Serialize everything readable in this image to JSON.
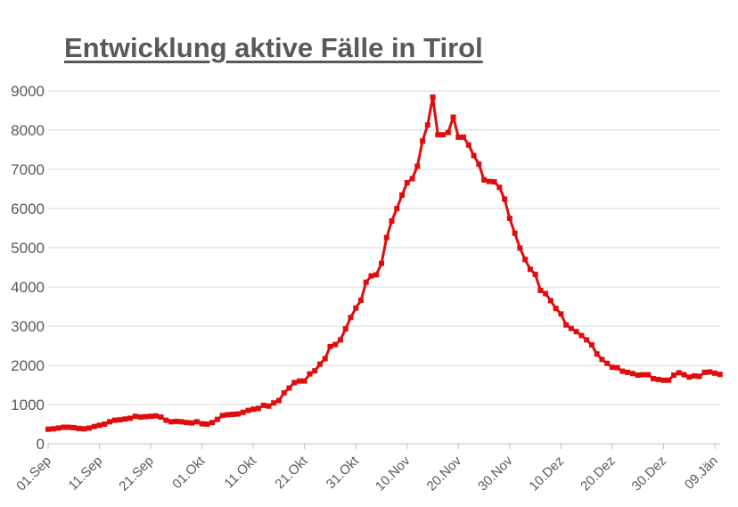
{
  "chart_data": {
    "type": "line",
    "title": "Entwicklung aktive Fälle in Tirol",
    "xlabel": "",
    "ylabel": "",
    "ylim": [
      0,
      9000
    ],
    "yticks": [
      0,
      1000,
      2000,
      3000,
      4000,
      5000,
      6000,
      7000,
      8000,
      9000
    ],
    "xticks": [
      "01.Sep",
      "11.Sep",
      "21.Sep",
      "01.Okt",
      "11.Okt",
      "21.Okt",
      "31.Okt",
      "10.Nov",
      "20.Nov",
      "30.Nov",
      "10.Dez",
      "20.Dez",
      "30.Dez",
      "09.Jän"
    ],
    "grid": "horizontal",
    "legend": "none",
    "color": "#e00d0d",
    "marker": "square",
    "x": [
      "01.Sep",
      "02.Sep",
      "03.Sep",
      "04.Sep",
      "05.Sep",
      "06.Sep",
      "07.Sep",
      "08.Sep",
      "09.Sep",
      "10.Sep",
      "11.Sep",
      "12.Sep",
      "13.Sep",
      "14.Sep",
      "15.Sep",
      "16.Sep",
      "17.Sep",
      "18.Sep",
      "19.Sep",
      "20.Sep",
      "21.Sep",
      "22.Sep",
      "23.Sep",
      "24.Sep",
      "25.Sep",
      "26.Sep",
      "27.Sep",
      "28.Sep",
      "29.Sep",
      "30.Sep",
      "01.Okt",
      "02.Okt",
      "03.Okt",
      "04.Okt",
      "05.Okt",
      "06.Okt",
      "07.Okt",
      "08.Okt",
      "09.Okt",
      "10.Okt",
      "11.Okt",
      "12.Okt",
      "13.Okt",
      "14.Okt",
      "15.Okt",
      "16.Okt",
      "17.Okt",
      "18.Okt",
      "19.Okt",
      "20.Okt",
      "21.Okt",
      "22.Okt",
      "23.Okt",
      "24.Okt",
      "25.Okt",
      "26.Okt",
      "27.Okt",
      "28.Okt",
      "29.Okt",
      "30.Okt",
      "31.Okt",
      "01.Nov",
      "02.Nov",
      "03.Nov",
      "04.Nov",
      "05.Nov",
      "06.Nov",
      "07.Nov",
      "08.Nov",
      "09.Nov",
      "10.Nov",
      "11.Nov",
      "12.Nov",
      "13.Nov",
      "14.Nov",
      "15.Nov",
      "16.Nov",
      "17.Nov",
      "18.Nov",
      "19.Nov",
      "20.Nov",
      "21.Nov",
      "22.Nov",
      "23.Nov",
      "24.Nov",
      "25.Nov",
      "26.Nov",
      "27.Nov",
      "28.Nov",
      "29.Nov",
      "30.Nov",
      "01.Dez",
      "02.Dez",
      "03.Dez",
      "04.Dez",
      "05.Dez",
      "06.Dez",
      "07.Dez",
      "08.Dez",
      "09.Dez",
      "10.Dez",
      "11.Dez",
      "12.Dez",
      "13.Dez",
      "14.Dez",
      "15.Dez",
      "16.Dez",
      "17.Dez",
      "18.Dez",
      "19.Dez",
      "20.Dez",
      "21.Dez",
      "22.Dez",
      "23.Dez",
      "24.Dez",
      "25.Dez",
      "26.Dez",
      "27.Dez",
      "28.Dez",
      "29.Dez",
      "30.Dez",
      "31.Dez",
      "01.Jän",
      "02.Jän",
      "03.Jän",
      "04.Jän",
      "05.Jän",
      "06.Jän",
      "07.Jän",
      "08.Jän",
      "09.Jän",
      "10.Jän"
    ],
    "values": [
      370,
      380,
      400,
      420,
      420,
      410,
      390,
      380,
      400,
      440,
      470,
      500,
      560,
      600,
      610,
      630,
      650,
      700,
      680,
      690,
      700,
      710,
      680,
      600,
      560,
      570,
      560,
      540,
      530,
      560,
      510,
      500,
      540,
      620,
      720,
      740,
      750,
      760,
      800,
      850,
      880,
      900,
      980,
      960,
      1040,
      1100,
      1300,
      1420,
      1560,
      1600,
      1600,
      1780,
      1860,
      2030,
      2170,
      2480,
      2530,
      2650,
      2930,
      3220,
      3460,
      3660,
      4120,
      4280,
      4310,
      4600,
      5260,
      5680,
      6000,
      6340,
      6660,
      6760,
      7080,
      7720,
      8130,
      8840,
      7880,
      7880,
      7940,
      8330,
      7820,
      7820,
      7620,
      7350,
      7130,
      6730,
      6690,
      6680,
      6540,
      6240,
      5750,
      5370,
      4990,
      4700,
      4450,
      4320,
      3910,
      3830,
      3650,
      3450,
      3310,
      3030,
      2940,
      2860,
      2760,
      2650,
      2520,
      2290,
      2150,
      2050,
      1950,
      1940,
      1850,
      1820,
      1790,
      1750,
      1760,
      1760,
      1660,
      1640,
      1620,
      1620,
      1750,
      1810,
      1760,
      1700,
      1730,
      1720,
      1820,
      1830,
      1800,
      1770
    ]
  }
}
